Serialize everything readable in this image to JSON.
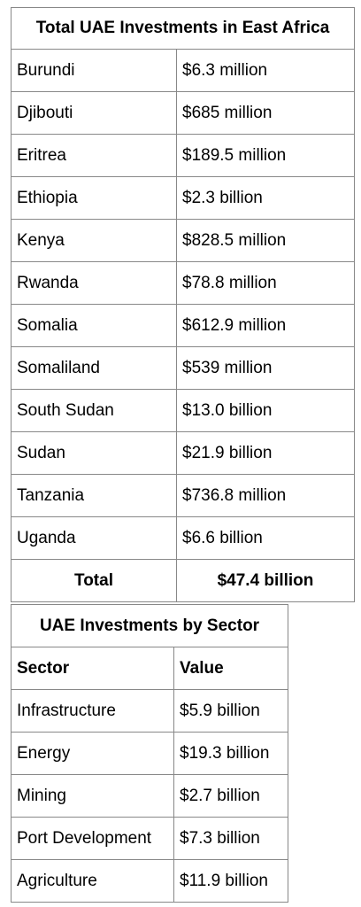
{
  "countries_table": {
    "title": "Total UAE Investments in East Africa",
    "rows": [
      {
        "country": "Burundi",
        "value": "$6.3 million"
      },
      {
        "country": "Djibouti",
        "value": "$685 million"
      },
      {
        "country": "Eritrea",
        "value": "$189.5 million"
      },
      {
        "country": "Ethiopia",
        "value": "$2.3 billion"
      },
      {
        "country": "Kenya",
        "value": "$828.5 million"
      },
      {
        "country": "Rwanda",
        "value": "$78.8 million"
      },
      {
        "country": "Somalia",
        "value": "$612.9 million"
      },
      {
        "country": "Somaliland",
        "value": "$539 million"
      },
      {
        "country": "South Sudan",
        "value": "$13.0 billion"
      },
      {
        "country": "Sudan",
        "value": "$21.9 billion"
      },
      {
        "country": "Tanzania",
        "value": "$736.8 million"
      },
      {
        "country": "Uganda",
        "value": "$6.6 billion"
      }
    ],
    "total_label": "Total",
    "total_value": "$47.4 billion"
  },
  "sectors_table": {
    "title": "UAE Investments by Sector",
    "headers": [
      "Sector",
      "Value"
    ],
    "rows": [
      {
        "sector": "Infrastructure",
        "value": "$5.9 billion"
      },
      {
        "sector": "Energy",
        "value": "$19.3 billion"
      },
      {
        "sector": "Mining",
        "value": "$2.7 billion"
      },
      {
        "sector": "Port Development",
        "value": "$7.3 billion"
      },
      {
        "sector": "Agriculture",
        "value": "$11.9 billion"
      }
    ]
  }
}
